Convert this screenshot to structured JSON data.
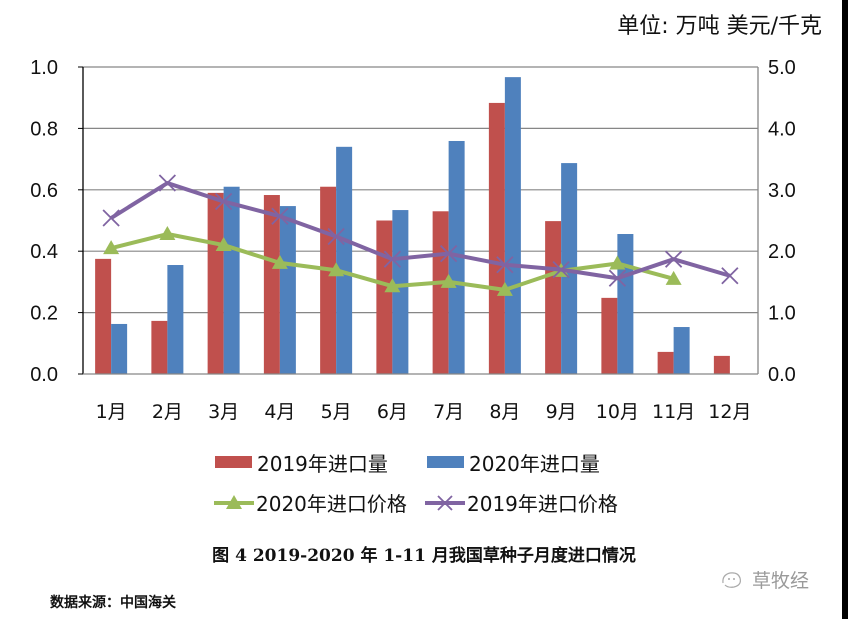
{
  "unit_label": "单位: 万吨 美元/千克",
  "caption": "图 4 2019-2020 年 1-11  月我国草种子月度进口情况",
  "source": "数据来源：中国海关",
  "watermark": "草牧经",
  "colors": {
    "bar_2019": "#C0504D",
    "bar_2020": "#4F81BD",
    "price_2020": "#9BBB59",
    "price_2019": "#8064A2",
    "grid": "#868686"
  },
  "chart_data": {
    "type": "bar",
    "title": "图 4 2019-2020 年 1-11  月我国草种子月度进口情况",
    "xlabel": "",
    "ylabel": "万吨",
    "y2label": "美元/千克",
    "categories": [
      "1月",
      "2月",
      "3月",
      "4月",
      "5月",
      "6月",
      "7月",
      "8月",
      "9月",
      "10月",
      "11月",
      "12月"
    ],
    "ylim": [
      0,
      1.0
    ],
    "y_ticks": [
      "0.0",
      "0.2",
      "0.4",
      "0.6",
      "0.8",
      "1.0"
    ],
    "y2lim": [
      0,
      5.0
    ],
    "y2_ticks": [
      "0.0",
      "1.0",
      "2.0",
      "3.0",
      "4.0",
      "5.0"
    ],
    "grid": true,
    "legend_position": "bottom",
    "series": [
      {
        "name": "2019年进口量",
        "kind": "bar",
        "axis": "left",
        "values": [
          0.375,
          0.173,
          0.59,
          0.583,
          0.61,
          0.5,
          0.53,
          0.883,
          0.498,
          0.248,
          0.072,
          0.059
        ]
      },
      {
        "name": "2020年进口量",
        "kind": "bar",
        "axis": "left",
        "values": [
          0.163,
          0.355,
          0.61,
          0.547,
          0.74,
          0.534,
          0.759,
          0.967,
          0.687,
          0.456,
          0.153,
          null
        ]
      },
      {
        "name": "2020年进口价格",
        "kind": "line",
        "marker": "triangle",
        "axis": "right",
        "values": [
          2.05,
          2.28,
          2.1,
          1.81,
          1.69,
          1.43,
          1.5,
          1.37,
          1.68,
          1.8,
          1.55,
          null
        ]
      },
      {
        "name": "2019年进口价格",
        "kind": "line",
        "marker": "x",
        "axis": "right",
        "values": [
          2.54,
          3.11,
          2.81,
          2.57,
          2.24,
          1.87,
          1.96,
          1.78,
          1.7,
          1.56,
          1.87,
          1.6
        ]
      }
    ],
    "legend": [
      "2019年进口量",
      "2020年进口量",
      "2020年进口价格",
      "2019年进口价格"
    ]
  }
}
